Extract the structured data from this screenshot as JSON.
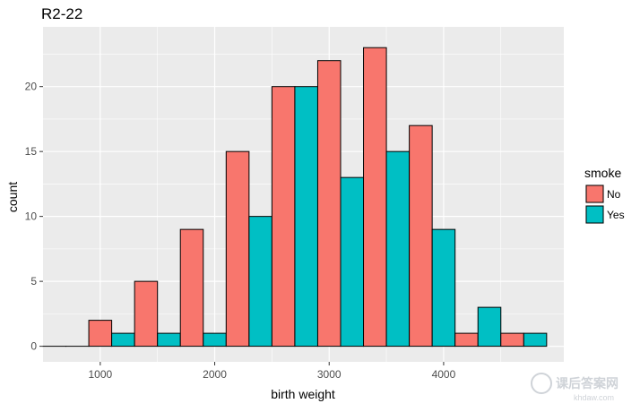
{
  "chart_data": {
    "type": "bar",
    "title": "R2-22",
    "xlabel": "birth weight",
    "ylabel": "count",
    "xlim": [
      500,
      5050
    ],
    "ylim": [
      -1.2,
      24.6
    ],
    "x_ticks": [
      1000,
      2000,
      3000,
      4000
    ],
    "y_ticks": [
      0,
      5,
      10,
      15,
      20
    ],
    "grid": true,
    "bin_centers": [
      700,
      1100,
      1500,
      1900,
      2300,
      2700,
      3100,
      3500,
      3900,
      4300,
      4700
    ],
    "bin_width": 400,
    "series": [
      {
        "name": "No",
        "values": [
          0,
          2,
          5,
          9,
          15,
          20,
          22,
          23,
          17,
          1,
          1
        ],
        "color": "#F8766D"
      },
      {
        "name": "Yes",
        "values": [
          0,
          1,
          1,
          1,
          10,
          20,
          13,
          15,
          9,
          3,
          1
        ],
        "color": "#00BFC4"
      }
    ],
    "legend": {
      "title": "smoke",
      "position": "right",
      "items": [
        {
          "label": "No",
          "color": "#F8766D"
        },
        {
          "label": "Yes",
          "color": "#00BFC4"
        }
      ]
    },
    "panel_background": "#EBEBEB",
    "grid_color": "#FFFFFF"
  },
  "watermark": {
    "text": "课后答案网",
    "sub": "khdaw.com"
  }
}
